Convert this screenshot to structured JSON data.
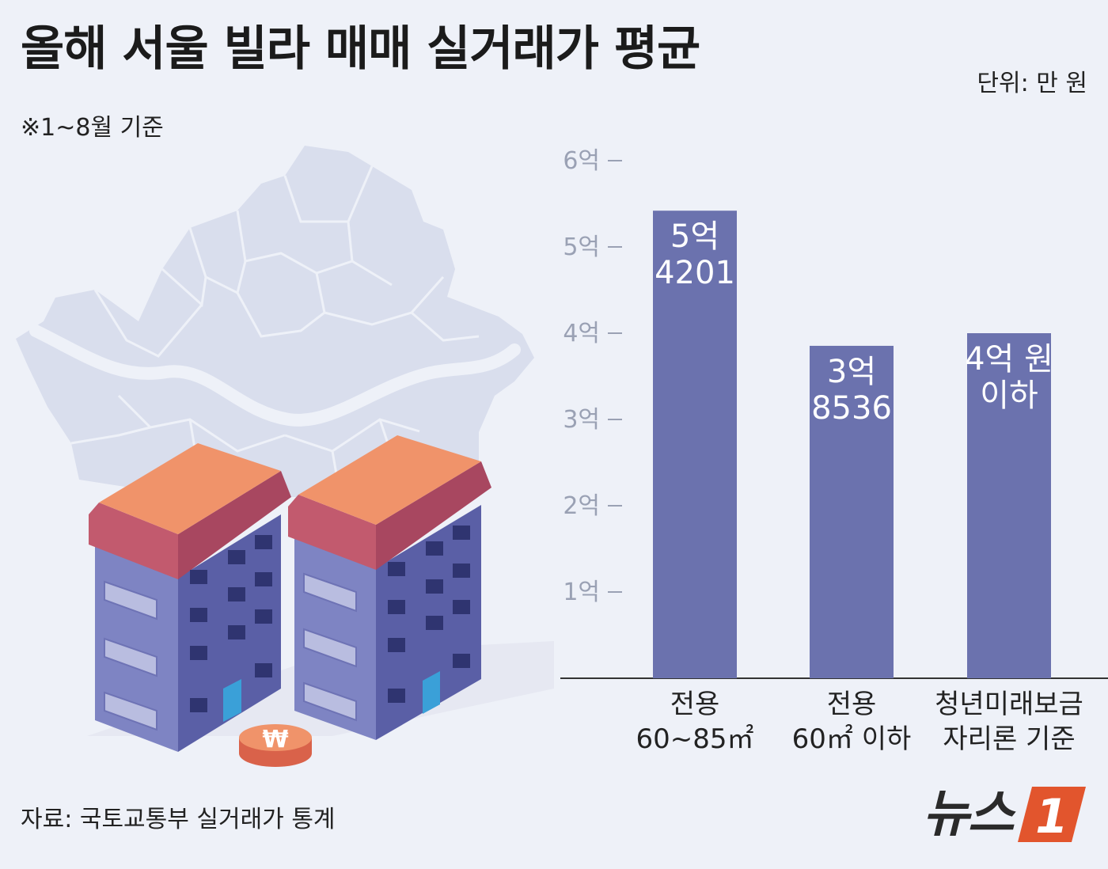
{
  "header": {
    "title": "올해 서울 빌라 매매 실거래가 평균",
    "unit": "단위: 만 원",
    "note": "※1~8월 기준"
  },
  "footer": {
    "source": "자료: 국토교통부 실거래가 통계",
    "logo_text": "뉴스",
    "logo_number": "1"
  },
  "illustration": {
    "coin_symbol": "₩"
  },
  "chart_data": {
    "type": "bar",
    "ylim": [
      0,
      60000
    ],
    "y_ticks": [
      {
        "value": 10000,
        "label": "1억"
      },
      {
        "value": 20000,
        "label": "2억"
      },
      {
        "value": 30000,
        "label": "3억"
      },
      {
        "value": 40000,
        "label": "4억"
      },
      {
        "value": 50000,
        "label": "5억"
      },
      {
        "value": 60000,
        "label": "6억"
      }
    ],
    "categories": [
      [
        "전용",
        "60~85㎡"
      ],
      [
        "전용",
        "60㎡ 이하"
      ],
      [
        "청년미래보금",
        "자리론 기준"
      ]
    ],
    "values": [
      54201,
      38536,
      40000
    ],
    "value_labels": [
      [
        "5억",
        "4201"
      ],
      [
        "3억",
        "8536"
      ],
      [
        "4억 원",
        "이하"
      ]
    ],
    "bar_color": "#6b72ae",
    "grid": false
  }
}
